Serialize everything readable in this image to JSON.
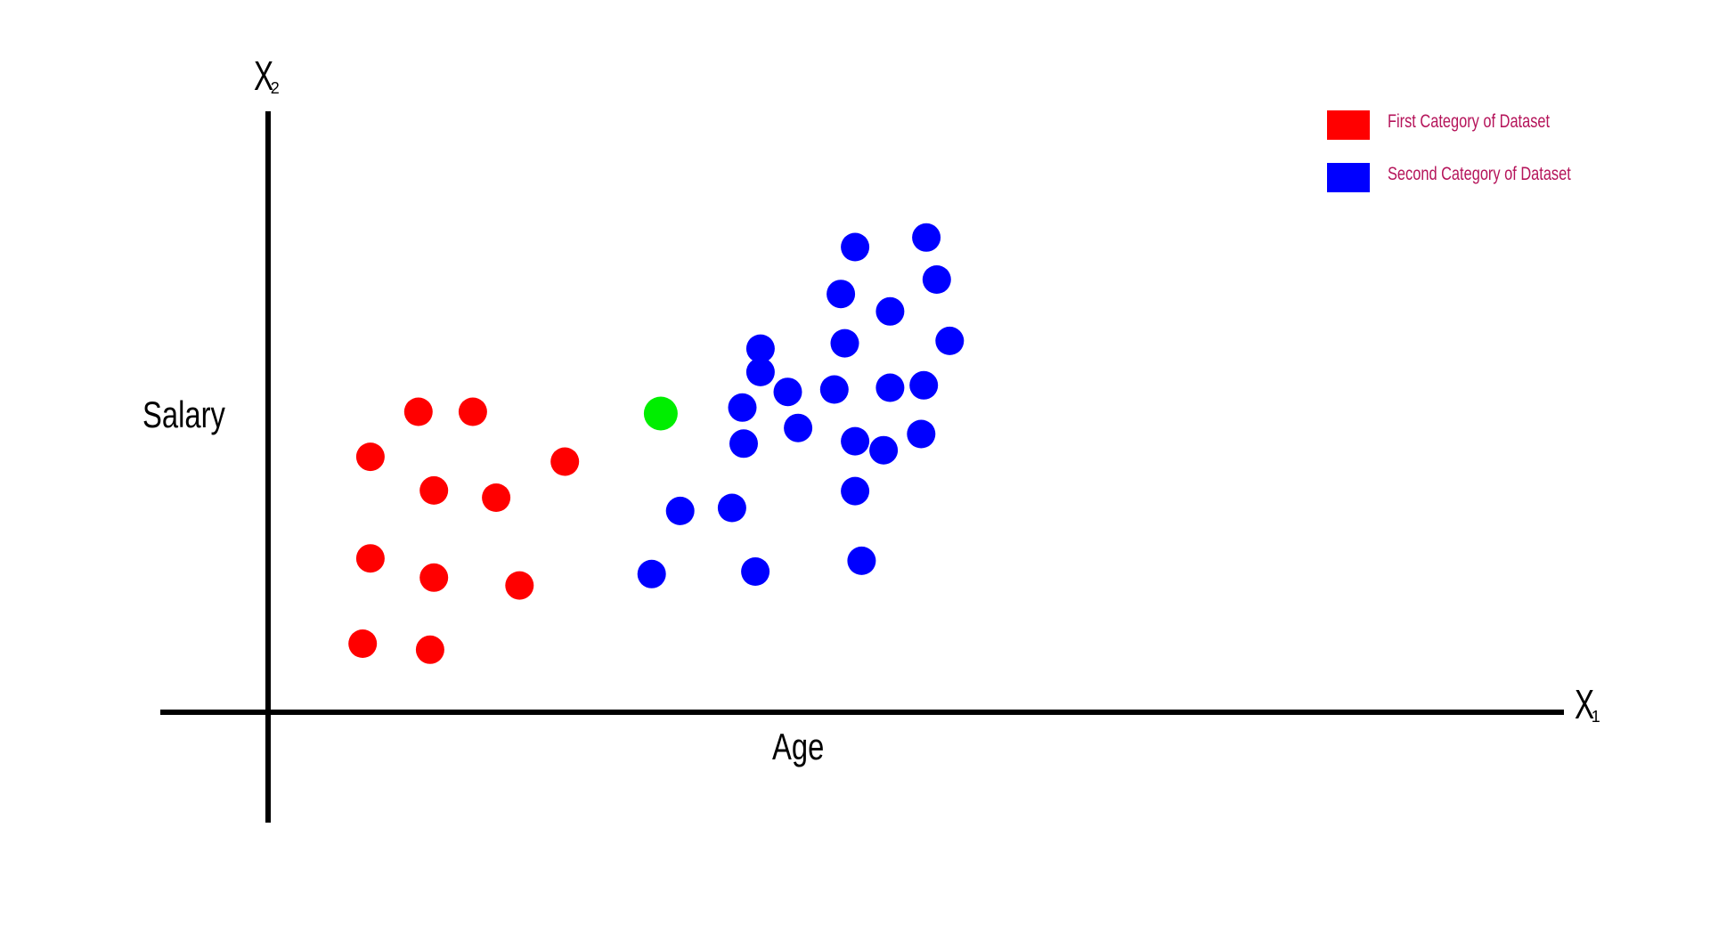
{
  "chart_data": {
    "type": "scatter",
    "title": "",
    "xlabel": "Age",
    "ylabel": "Salary",
    "x_axis_name": "X",
    "x_axis_sub": "1",
    "y_axis_name": "X",
    "y_axis_sub": "2",
    "xlim": [
      0,
      100
    ],
    "ylim": [
      0,
      100
    ],
    "grid": false,
    "legend_position": "top-right",
    "series": [
      {
        "name": "First Category of Dataset",
        "color": "#ff0000",
        "points": [
          [
            11.6,
            50.0
          ],
          [
            15.8,
            50.0
          ],
          [
            7.9,
            42.5
          ],
          [
            22.9,
            41.7
          ],
          [
            12.8,
            36.9
          ],
          [
            17.6,
            35.7
          ],
          [
            7.9,
            25.6
          ],
          [
            12.8,
            22.4
          ],
          [
            19.4,
            21.1
          ],
          [
            7.3,
            11.4
          ],
          [
            12.5,
            10.4
          ]
        ]
      },
      {
        "name": "Second Category of Dataset",
        "color": "#0000ff",
        "points": [
          [
            45.3,
            77.4
          ],
          [
            50.8,
            79.0
          ],
          [
            44.2,
            69.6
          ],
          [
            48.0,
            66.7
          ],
          [
            51.6,
            72.0
          ],
          [
            44.5,
            61.4
          ],
          [
            52.6,
            61.8
          ],
          [
            38.0,
            60.5
          ],
          [
            38.0,
            56.6
          ],
          [
            40.1,
            53.3
          ],
          [
            43.7,
            53.7
          ],
          [
            48.0,
            54.0
          ],
          [
            50.6,
            54.4
          ],
          [
            36.6,
            50.7
          ],
          [
            36.7,
            44.7
          ],
          [
            40.9,
            47.3
          ],
          [
            45.3,
            45.1
          ],
          [
            47.5,
            43.6
          ],
          [
            50.4,
            46.3
          ],
          [
            45.3,
            36.8
          ],
          [
            31.8,
            33.5
          ],
          [
            35.8,
            34.0
          ],
          [
            29.6,
            23.0
          ],
          [
            37.6,
            23.4
          ],
          [
            45.8,
            25.2
          ]
        ]
      },
      {
        "color": "#00ee00",
        "points": [
          [
            30.3,
            49.7
          ]
        ]
      }
    ]
  }
}
